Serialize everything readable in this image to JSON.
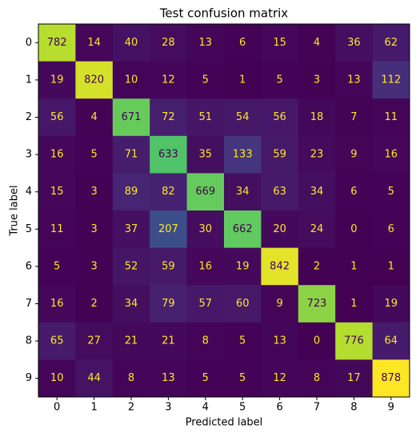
{
  "chart_data": {
    "type": "heatmap",
    "title": "Test confusion matrix",
    "x_label": "Predicted label",
    "y_label": "True label",
    "x_categories": [
      "0",
      "1",
      "2",
      "3",
      "4",
      "5",
      "6",
      "7",
      "8",
      "9"
    ],
    "y_categories": [
      "0",
      "1",
      "2",
      "3",
      "4",
      "5",
      "6",
      "7",
      "8",
      "9"
    ],
    "colormap": "viridis",
    "values": [
      [
        782,
        14,
        40,
        28,
        13,
        6,
        15,
        4,
        36,
        62
      ],
      [
        19,
        820,
        10,
        12,
        5,
        1,
        5,
        3,
        13,
        112
      ],
      [
        56,
        4,
        671,
        72,
        51,
        54,
        56,
        18,
        7,
        11
      ],
      [
        16,
        5,
        71,
        633,
        35,
        133,
        59,
        23,
        9,
        16
      ],
      [
        15,
        3,
        89,
        82,
        669,
        34,
        63,
        34,
        6,
        5
      ],
      [
        11,
        3,
        37,
        207,
        30,
        662,
        20,
        24,
        0,
        6
      ],
      [
        5,
        3,
        52,
        59,
        16,
        19,
        842,
        2,
        1,
        1
      ],
      [
        16,
        2,
        34,
        79,
        57,
        60,
        9,
        723,
        1,
        19
      ],
      [
        65,
        27,
        21,
        21,
        8,
        5,
        13,
        0,
        776,
        64
      ],
      [
        10,
        44,
        8,
        13,
        5,
        5,
        12,
        8,
        17,
        878
      ]
    ]
  }
}
